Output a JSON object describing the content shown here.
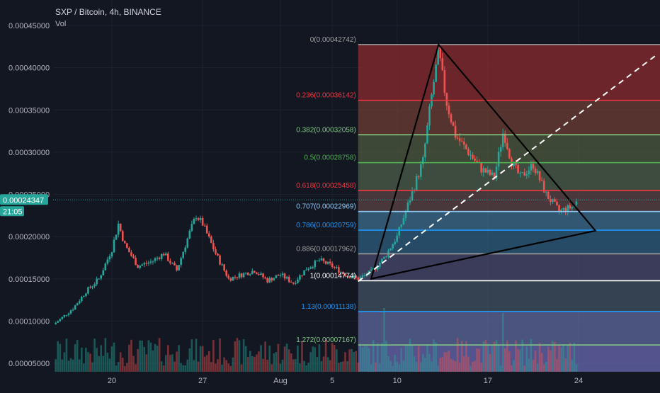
{
  "header": {
    "symbol_title": "SXP / Bitcoin, 4h, BINANCE",
    "volume_label": "Vol"
  },
  "price_badge": {
    "value": "0.00024347",
    "countdown": "21:05"
  },
  "colors": {
    "background": "#131722",
    "candle_up": "#26a69a",
    "candle_down": "#ef5350",
    "axis_text": "#b2b5be",
    "trendline": "#000000",
    "dashed_line": "#ffffff"
  },
  "chart_data": {
    "type": "candlestick",
    "title": "SXP / Bitcoin, 4h, BINANCE",
    "y_axis": {
      "ticks": [
        "0.00045000",
        "0.00040000",
        "0.00035000",
        "0.00030000",
        "0.00025000",
        "0.00020000",
        "0.00015000",
        "0.00010000",
        "0.00005000"
      ],
      "tick_values": [
        0.00045,
        0.0004,
        0.00035,
        0.0003,
        0.00025,
        0.0002,
        0.00015,
        0.0001,
        5e-05
      ],
      "range": [
        4.7e-05,
        0.00047
      ]
    },
    "x_axis": {
      "ticks": [
        "20",
        "27",
        "Aug",
        "5",
        "10",
        "17",
        "24"
      ],
      "tick_days": [
        -12,
        -5,
        1,
        5,
        10,
        17,
        24
      ],
      "day_range": [
        -20,
        30
      ]
    },
    "current_price": 0.00024347,
    "price_path": [
      [
        -20,
        9.2e-05
      ],
      [
        -19,
        8.8e-05
      ],
      [
        -18,
        8.5e-05
      ],
      [
        -17,
        9e-05
      ],
      [
        -16,
        0.000102
      ],
      [
        -15,
        0.000115
      ],
      [
        -14,
        0.000135
      ],
      [
        -13,
        0.00015
      ],
      [
        -12,
        0.000185
      ],
      [
        -11.5,
        0.000215
      ],
      [
        -11,
        0.00019
      ],
      [
        -10,
        0.000165
      ],
      [
        -9,
        0.00017
      ],
      [
        -8,
        0.00018
      ],
      [
        -7,
        0.00016
      ],
      [
        -6,
        0.000205
      ],
      [
        -5.5,
        0.000225
      ],
      [
        -5,
        0.000215
      ],
      [
        -4,
        0.00018
      ],
      [
        -3,
        0.00015
      ],
      [
        -2,
        0.000155
      ],
      [
        -1,
        0.00016
      ],
      [
        0,
        0.000148
      ],
      [
        1,
        0.000155
      ],
      [
        2,
        0.000145
      ],
      [
        3,
        0.000162
      ],
      [
        4,
        0.000172
      ],
      [
        5,
        0.000165
      ],
      [
        6,
        0.000155
      ],
      [
        7,
        0.00015
      ],
      [
        8,
        0.000158
      ],
      [
        9,
        0.000175
      ],
      [
        10,
        0.0002
      ],
      [
        11,
        0.000245
      ],
      [
        12,
        0.00029
      ],
      [
        12.6,
        0.00036
      ],
      [
        13.2,
        0.00042
      ],
      [
        13.8,
        0.00036
      ],
      [
        14.5,
        0.00032
      ],
      [
        15.5,
        0.0003
      ],
      [
        16.5,
        0.00028
      ],
      [
        17.5,
        0.00027
      ],
      [
        18.2,
        0.000325
      ],
      [
        18.8,
        0.00029
      ],
      [
        19.5,
        0.00027
      ],
      [
        20.5,
        0.000285
      ],
      [
        21.5,
        0.00025
      ],
      [
        22.5,
        0.00023
      ],
      [
        23.5,
        0.000235
      ],
      [
        24,
        0.00024347
      ]
    ],
    "fibonacci": {
      "start_day": 7,
      "levels": [
        {
          "label": "0(0.00042742)",
          "price": 0.00042742,
          "color": "#9e9e9e"
        },
        {
          "label": "0.236(0.00036142)",
          "price": 0.00036142,
          "color": "#f23645"
        },
        {
          "label": "0.382(0.00032058)",
          "price": 0.00032058,
          "color": "#81c784"
        },
        {
          "label": "0.5(0.00028758)",
          "price": 0.00028758,
          "color": "#4caf50"
        },
        {
          "label": "0.618(0.00025458)",
          "price": 0.00025458,
          "color": "#f23645"
        },
        {
          "label": "0.707(0.00022969)",
          "price": 0.00022969,
          "color": "#90caf9"
        },
        {
          "label": "0.786(0.00020759)",
          "price": 0.00020759,
          "color": "#2196f3"
        },
        {
          "label": "0.886(0.00017962)",
          "price": 0.00017962,
          "color": "#9e9e9e"
        },
        {
          "label": "1(0.00014774)",
          "price": 0.00014774,
          "color": "#ffffff"
        },
        {
          "label": "1.13(0.00011138)",
          "price": 0.00011138,
          "color": "#2196f3"
        },
        {
          "label": "1.272(0.00007167)",
          "price": 7.167e-05,
          "color": "#81c784"
        }
      ],
      "zone_fills": [
        "#8b2b2e",
        "#6e3e34",
        "#4e5a3e",
        "#4e5e4a",
        "#5c4444",
        "#3e6e8e",
        "#2e5e7e",
        "#4a4a6e",
        "#405262",
        "#5e6a9e",
        "#6a6ab2"
      ]
    },
    "drawings": {
      "triangle": [
        [
          13.2,
          0.00042742
        ],
        [
          25.3,
          0.000207
        ],
        [
          8,
          0.00015
        ]
      ],
      "dashed_trend": [
        [
          7,
          0.000147
        ],
        [
          30,
          0.000415
        ]
      ]
    }
  }
}
